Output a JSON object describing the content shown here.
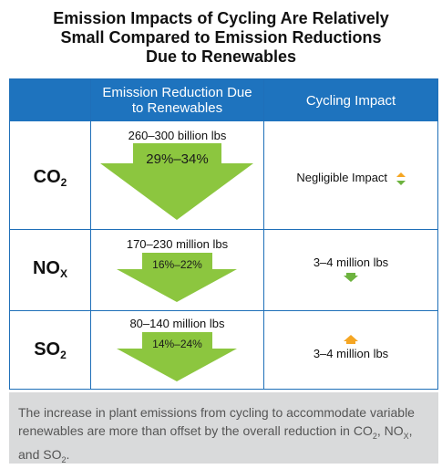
{
  "title": {
    "line1": "Emission Impacts of Cycling Are Relatively",
    "line2": "Small Compared to Emission Reductions",
    "line3": "Due to Renewables"
  },
  "header": {
    "col2_line1": "Emission Reduction Due",
    "col2_line2": "to Renewables",
    "col3": "Cycling Impact"
  },
  "rows": [
    {
      "pollutant": "CO",
      "sub": "2",
      "reduction": "260–300 billion lbs",
      "percent": "29%–34%",
      "impact": "Negligible Impact",
      "impact_icon": "up-down-arrow-icon"
    },
    {
      "pollutant": "NO",
      "sub": "X",
      "reduction": "170–230 million lbs",
      "percent": "16%–22%",
      "impact": "3–4 million lbs",
      "impact_icon": "down-arrow-icon"
    },
    {
      "pollutant": "SO",
      "sub": "2",
      "reduction": "80–140 million lbs",
      "percent": "14%–24%",
      "impact": "3–4 million lbs",
      "impact_icon": "up-arrow-icon"
    }
  ],
  "footer": {
    "text_a": "The increase in plant emissions from cycling to accommodate variable renewables are more than offset by the overall reduction in CO",
    "sub_a": "2",
    "text_b": ", NO",
    "sub_b": "X",
    "text_c": ", and SO",
    "sub_c": "2",
    "text_d": "."
  },
  "colors": {
    "header_blue": "#1e73be",
    "arrow_green": "#8cc63f",
    "impact_green": "#6db33f",
    "impact_orange": "#f5a623",
    "footer_gray": "#d9dadb"
  },
  "chart_data": {
    "type": "table",
    "title": "Emission Impacts of Cycling Are Relatively Small Compared to Emission Reductions Due to Renewables",
    "columns": [
      "",
      "Emission Reduction Due to Renewables",
      "Cycling Impact"
    ],
    "rows": [
      [
        "CO2",
        "260–300 billion lbs (29%–34%)",
        "Negligible Impact"
      ],
      [
        "NOX",
        "170–230 million lbs (16%–22%)",
        "3–4 million lbs"
      ],
      [
        "SO2",
        "80–140 million lbs (14%–24%)",
        "3–4 million lbs"
      ]
    ]
  }
}
